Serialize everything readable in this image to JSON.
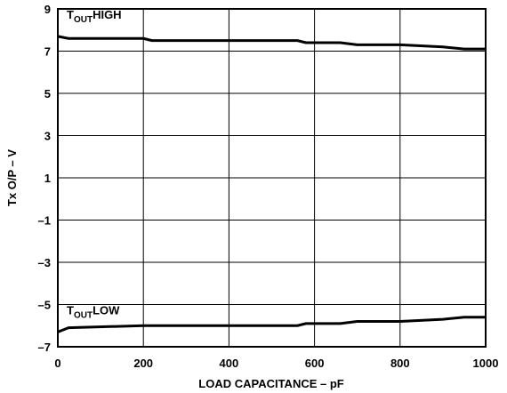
{
  "chart_data": {
    "type": "line",
    "xlabel": "LOAD CAPACITANCE – pF",
    "ylabel": "Tx O/P – V",
    "x": [
      0,
      25,
      200,
      220,
      560,
      580,
      660,
      700,
      800,
      900,
      950,
      1000
    ],
    "series": [
      {
        "color": "#000000",
        "values": [
          7.7,
          7.6,
          7.6,
          7.5,
          7.5,
          7.4,
          7.4,
          7.3,
          7.3,
          7.2,
          7.1,
          7.1
        ]
      },
      {
        "color": "#000000",
        "values": [
          -6.3,
          -6.1,
          -6.0,
          -6.0,
          -6.0,
          -5.9,
          -5.9,
          -5.8,
          -5.8,
          -5.7,
          -5.6,
          -5.6
        ]
      }
    ],
    "annotations": [
      [
        "T",
        "OUT",
        "HIGH"
      ],
      [
        "T",
        "OUT",
        "LOW"
      ]
    ],
    "xlim": [
      0,
      1000
    ],
    "xticks": [
      0,
      200,
      400,
      600,
      800,
      1000
    ],
    "ylim": [
      -7,
      9
    ],
    "yticks": [
      {
        "value": -7,
        "label": "–7"
      },
      {
        "value": -5,
        "label": "–5"
      },
      {
        "value": -3,
        "label": "–3"
      },
      {
        "value": -1,
        "label": "–1"
      },
      1,
      3,
      5,
      7,
      9
    ],
    "grid": true
  }
}
